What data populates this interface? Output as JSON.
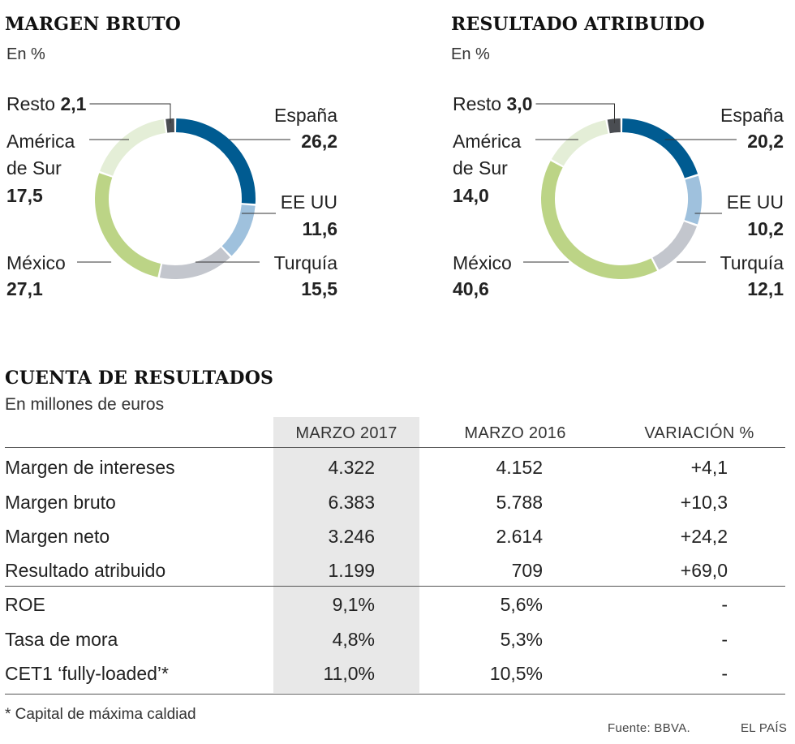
{
  "colors": {
    "espana": "#005B91",
    "eeuu": "#9FC1DD",
    "turquia": "#C3C6CD",
    "mexico": "#BCD486",
    "america_sur": "#E4EED7",
    "resto": "#4A4D52",
    "table_shade": "#e8e8e8"
  },
  "chart_data": [
    {
      "type": "pie",
      "title": "MARGEN BRUTO",
      "subtitle": "En %",
      "categories": [
        "España",
        "EE UU",
        "Turquía",
        "México",
        "América de Sur",
        "Resto"
      ],
      "values": [
        26.2,
        11.6,
        15.5,
        27.1,
        17.5,
        2.1
      ],
      "value_labels": [
        "26,2",
        "11,6",
        "15,5",
        "27,1",
        "17,5",
        "2,1"
      ],
      "label_lines": [
        [
          "España"
        ],
        [
          "EE UU"
        ],
        [
          "Turquía"
        ],
        [
          "México"
        ],
        [
          "América",
          "de Sur"
        ],
        [
          "Resto"
        ]
      ]
    },
    {
      "type": "pie",
      "title": "RESULTADO ATRIBUIDO",
      "subtitle": "En %",
      "categories": [
        "España",
        "EE UU",
        "Turquía",
        "México",
        "América de Sur",
        "Resto"
      ],
      "values": [
        20.2,
        10.2,
        12.1,
        40.6,
        14.0,
        3.0
      ],
      "value_labels": [
        "20,2",
        "10,2",
        "12,1",
        "40,6",
        "14,0",
        "3,0"
      ],
      "label_lines": [
        [
          "España"
        ],
        [
          "EE UU"
        ],
        [
          "Turquía"
        ],
        [
          "México"
        ],
        [
          "América",
          "de Sur"
        ],
        [
          "Resto"
        ]
      ]
    },
    {
      "type": "table",
      "title": "CUENTA DE RESULTADOS",
      "subtitle": "En millones de euros",
      "columns": [
        "MARZO 2017",
        "MARZO 2016",
        "VARIACIÓN %"
      ],
      "rows": [
        {
          "label": "Margen de intereses",
          "values": [
            "4.322",
            "4.152",
            "+4,1"
          ]
        },
        {
          "label": "Margen bruto",
          "values": [
            "6.383",
            "5.788",
            "+10,3"
          ]
        },
        {
          "label": "Margen neto",
          "values": [
            "3.246",
            "2.614",
            "+24,2"
          ]
        },
        {
          "label": "Resultado atribuido",
          "values": [
            "1.199",
            "709",
            "+69,0"
          ]
        },
        {
          "label": "ROE",
          "values": [
            "9,1%",
            "5,6%",
            "-"
          ]
        },
        {
          "label": "Tasa de mora",
          "values": [
            "4,8%",
            "5,3%",
            "-"
          ]
        },
        {
          "label": "CET1 ‘fully-loaded’*",
          "values": [
            "11,0%",
            "10,5%",
            "-"
          ]
        }
      ]
    }
  ],
  "footnote": "* Capital de máxima caldiad",
  "source": "Fuente: BBVA.",
  "credit": "EL PAÍS"
}
